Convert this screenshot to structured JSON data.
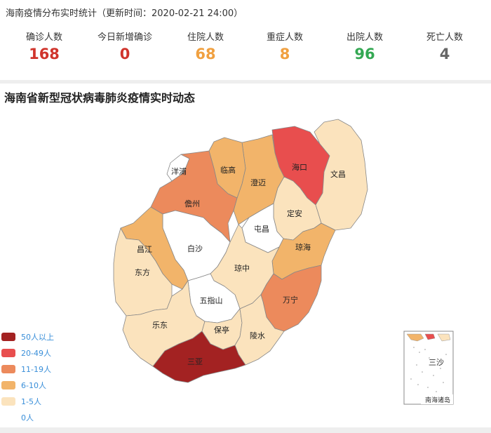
{
  "header": {
    "title": "海南疫情分布实时统计（更新时间：2020-02-21 24:00）"
  },
  "stats": [
    {
      "label": "确诊人数",
      "value": "168",
      "color": "#d0342c"
    },
    {
      "label": "今日新增确诊",
      "value": "0",
      "color": "#d0342c"
    },
    {
      "label": "住院人数",
      "value": "68",
      "color": "#f0a040"
    },
    {
      "label": "重症人数",
      "value": "8",
      "color": "#f0a040"
    },
    {
      "label": "出院人数",
      "value": "96",
      "color": "#34a853"
    },
    {
      "label": "死亡人数",
      "value": "4",
      "color": "#666666"
    }
  ],
  "map": {
    "title": "海南省新型冠状病毒肺炎疫情实时动态",
    "inset_labels": {
      "main": "三沙",
      "caption": "南海诸岛"
    },
    "regions": [
      {
        "name": "海口",
        "level": "20-49"
      },
      {
        "name": "文昌",
        "level": "1-5"
      },
      {
        "name": "澄迈",
        "level": "6-10"
      },
      {
        "name": "临高",
        "level": "6-10"
      },
      {
        "name": "儋州",
        "level": "11-19"
      },
      {
        "name": "洋浦",
        "level": "0"
      },
      {
        "name": "定安",
        "level": "1-5"
      },
      {
        "name": "屯昌",
        "level": "0"
      },
      {
        "name": "琼海",
        "level": "6-10"
      },
      {
        "name": "白沙",
        "level": "0"
      },
      {
        "name": "昌江",
        "level": "6-10"
      },
      {
        "name": "东方",
        "level": "1-5"
      },
      {
        "name": "琼中",
        "level": "1-5"
      },
      {
        "name": "万宁",
        "level": "11-19"
      },
      {
        "name": "五指山",
        "level": "0"
      },
      {
        "name": "乐东",
        "level": "1-5"
      },
      {
        "name": "保亭",
        "level": "1-5"
      },
      {
        "name": "陵水",
        "level": "1-5"
      },
      {
        "name": "三亚",
        "level": "50+"
      }
    ]
  },
  "legend": [
    {
      "label": "50人以上",
      "color": "#a32222"
    },
    {
      "label": "20-49人",
      "color": "#e84e4e"
    },
    {
      "label": "11-19人",
      "color": "#ec8a5c"
    },
    {
      "label": "6-10人",
      "color": "#f2b46a"
    },
    {
      "label": "1-5人",
      "color": "#fbe3bd"
    },
    {
      "label": "0人",
      "color": "#ffffff"
    }
  ]
}
